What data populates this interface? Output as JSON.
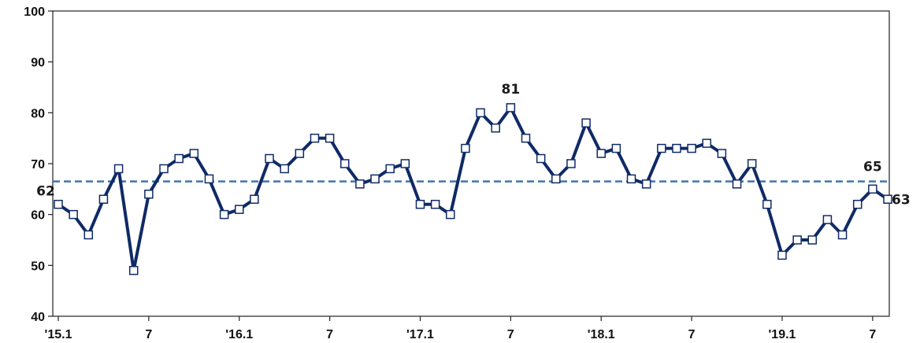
{
  "chart_data": {
    "type": "line",
    "title": "",
    "xlabel": "",
    "ylabel": "",
    "ylim": [
      40,
      100
    ],
    "yticks": [
      "40",
      "50",
      "60",
      "70",
      "80",
      "90",
      "100"
    ],
    "x": [
      "2015-01",
      "2015-02",
      "2015-03",
      "2015-04",
      "2015-05",
      "2015-06",
      "2015-07",
      "2015-08",
      "2015-09",
      "2015-10",
      "2015-11",
      "2015-12",
      "2016-01",
      "2016-02",
      "2016-03",
      "2016-04",
      "2016-05",
      "2016-06",
      "2016-07",
      "2016-08",
      "2016-09",
      "2016-10",
      "2016-11",
      "2016-12",
      "2017-01",
      "2017-02",
      "2017-03",
      "2017-04",
      "2017-05",
      "2017-06",
      "2017-07",
      "2017-08",
      "2017-09",
      "2017-10",
      "2017-11",
      "2017-12",
      "2018-01",
      "2018-02",
      "2018-03",
      "2018-04",
      "2018-05",
      "2018-06",
      "2018-07",
      "2018-08",
      "2018-09",
      "2018-10",
      "2018-11",
      "2018-12",
      "2019-01",
      "2019-02",
      "2019-03",
      "2019-04",
      "2019-05",
      "2019-06",
      "2019-07",
      "2019-08"
    ],
    "xticks": [
      {
        "x": "2015-01",
        "label": "'15.1"
      },
      {
        "x": "2015-07",
        "label": "7"
      },
      {
        "x": "2016-01",
        "label": "'16.1"
      },
      {
        "x": "2016-07",
        "label": "7"
      },
      {
        "x": "2017-01",
        "label": "'17.1"
      },
      {
        "x": "2017-07",
        "label": "7"
      },
      {
        "x": "2018-01",
        "label": "'18.1"
      },
      {
        "x": "2018-07",
        "label": "7"
      },
      {
        "x": "2019-01",
        "label": "'19.1"
      },
      {
        "x": "2019-07",
        "label": "7"
      }
    ],
    "series": [
      {
        "values": [
          62,
          60,
          56,
          63,
          69,
          49,
          64,
          69,
          71,
          72,
          67,
          60,
          61,
          63,
          71,
          69,
          72,
          75,
          75,
          70,
          66,
          67,
          69,
          70,
          62,
          62,
          60,
          73,
          80,
          77,
          81,
          75,
          71,
          67,
          70,
          78,
          72,
          73,
          67,
          66,
          73,
          73,
          73,
          74,
          72,
          66,
          70,
          62,
          52,
          55,
          55,
          59,
          56,
          62,
          65,
          63
        ],
        "color": "#0f2a66",
        "marker": "square"
      }
    ],
    "reference_line": {
      "y": 66.5,
      "style": "dashed",
      "color": "#3f74b4"
    },
    "annotations": [
      {
        "x": "2015-01",
        "label": "62",
        "color": "#1a1a1a"
      },
      {
        "x": "2017-07",
        "label": "81",
        "color": "#1a1a1a"
      },
      {
        "x": "2019-07",
        "label": "65",
        "color": "#1a1a1a"
      },
      {
        "x": "2019-08",
        "label": "63",
        "color": "#e8302a"
      }
    ],
    "grid": false,
    "legend": "none"
  }
}
